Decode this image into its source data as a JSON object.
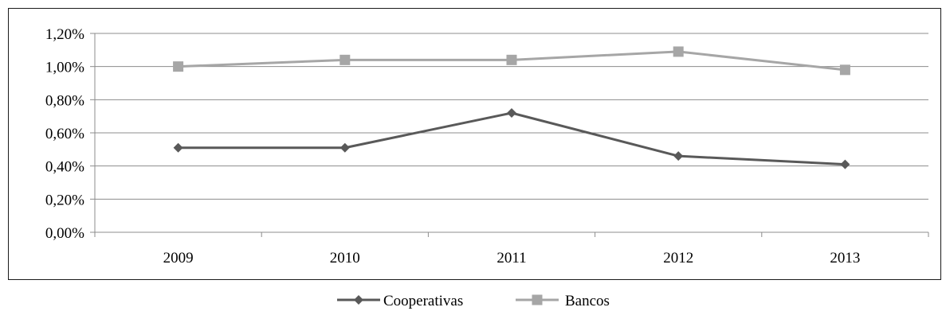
{
  "chart_data": {
    "type": "line",
    "categories": [
      "2009",
      "2010",
      "2011",
      "2012",
      "2013"
    ],
    "y_ticks": [
      "0,00%",
      "0,20%",
      "0,40%",
      "0,60%",
      "0,80%",
      "1,00%",
      "1,20%"
    ],
    "ylim": [
      0,
      1.2
    ],
    "y_unit": "%",
    "grid": true,
    "legend_position": "bottom",
    "series": [
      {
        "name": "Cooperativas",
        "values": [
          0.51,
          0.51,
          0.72,
          0.46,
          0.41
        ],
        "color": "#595959",
        "marker": "diamond"
      },
      {
        "name": "Bancos",
        "values": [
          1.0,
          1.04,
          1.04,
          1.09,
          0.98
        ],
        "color": "#a6a6a6",
        "marker": "square"
      }
    ]
  }
}
